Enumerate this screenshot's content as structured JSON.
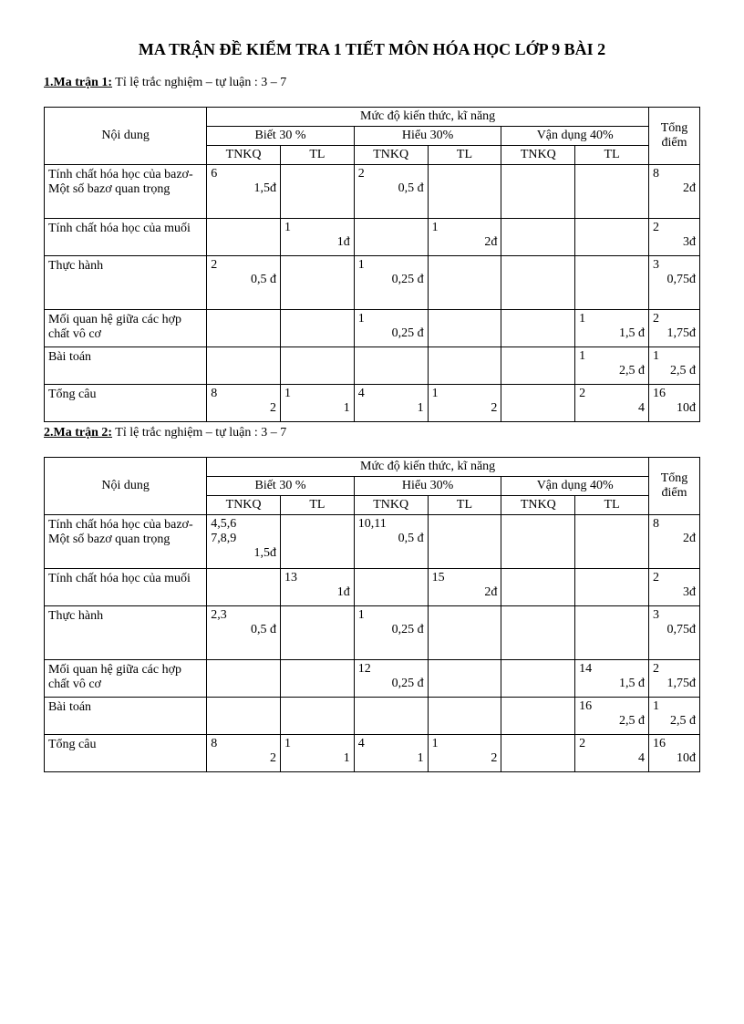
{
  "title": "MA TRẬN ĐỀ KIỂM TRA 1 TIẾT MÔN HÓA HỌC LỚP 9 BÀI 2",
  "sub1_label": "1.Ma trận 1:",
  "sub1_text": " Tỉ lệ trắc nghiệm  – tự luận : 3 – 7",
  "sub2_label": "2.Ma trận 2:",
  "sub2_text": " Tỉ lệ trắc nghiệm  – tự luận : 3 – 7",
  "headers": {
    "content": "Nội dung",
    "levels": "Mức độ kiến thức, kĩ năng",
    "total": "Tổng điểm",
    "biet": "Biết 30 %",
    "hieu": "Hiểu 30%",
    "van": "Vận dụng 40%",
    "tnkq": "TNKQ",
    "tl": "TL"
  },
  "rows_labels": {
    "r1": "Tính chất hóa học của bazơ- Một số bazơ quan trọng",
    "r2": "Tính chất hóa học của muối",
    "r3": "Thực hành",
    "r4": "Mối quan hệ giữa các hợp chất vô cơ",
    "r5": "Bài toán",
    "r6": "Tổng câu"
  },
  "t1": {
    "r1": {
      "c1t": "6",
      "c1b": "1,5đ",
      "c2t": "",
      "c2b": "",
      "c3t": "2",
      "c3b": "0,5 đ",
      "c4t": "",
      "c4b": "",
      "c5t": "",
      "c5b": "",
      "c6t": "",
      "c6b": "",
      "c7t": "8",
      "c7b": "2đ"
    },
    "r2": {
      "c1t": "",
      "c1b": "",
      "c2t": "1",
      "c2b": "1đ",
      "c3t": "",
      "c3b": "",
      "c4t": "1",
      "c4b": "2đ",
      "c5t": "",
      "c5b": "",
      "c6t": "",
      "c6b": "",
      "c7t": "2",
      "c7b": "3đ"
    },
    "r3": {
      "c1t": "2",
      "c1b": "0,5 đ",
      "c2t": "",
      "c2b": "",
      "c3t": "1",
      "c3b": "0,25 đ",
      "c4t": "",
      "c4b": "",
      "c5t": "",
      "c5b": "",
      "c6t": "",
      "c6b": "",
      "c7t": "3",
      "c7b": "0,75đ"
    },
    "r4": {
      "c1t": "",
      "c1b": "",
      "c2t": "",
      "c2b": "",
      "c3t": "1",
      "c3b": "0,25 đ",
      "c4t": "",
      "c4b": "",
      "c5t": "",
      "c5b": "",
      "c6t": "1",
      "c6b": "1,5 đ",
      "c7t": "2",
      "c7b": "1,75đ"
    },
    "r5": {
      "c1t": "",
      "c1b": "",
      "c2t": "",
      "c2b": "",
      "c3t": "",
      "c3b": "",
      "c4t": "",
      "c4b": "",
      "c5t": "",
      "c5b": "",
      "c6t": "1",
      "c6b": "2,5 đ",
      "c7t": "1",
      "c7b": "2,5 đ"
    },
    "r6": {
      "c1t": "8",
      "c1b": "2",
      "c2t": "1",
      "c2b": "1",
      "c3t": "4",
      "c3b": "1",
      "c4t": "1",
      "c4b": "2",
      "c5t": "",
      "c5b": "",
      "c6t": "2",
      "c6b": "4",
      "c7t": "16",
      "c7b": "10đ"
    }
  },
  "t2": {
    "r1": {
      "c1t": "4,5,6\n7,8,9",
      "c1b": "1,5đ",
      "c2t": "",
      "c2b": "",
      "c3t": "10,11",
      "c3b": "0,5 đ",
      "c4t": "",
      "c4b": "",
      "c5t": "",
      "c5b": "",
      "c6t": "",
      "c6b": "",
      "c7t": "8",
      "c7b": "2đ"
    },
    "r2": {
      "c1t": "",
      "c1b": "",
      "c2t": "13",
      "c2b": "1đ",
      "c3t": "",
      "c3b": "",
      "c4t": "15",
      "c4b": "2đ",
      "c5t": "",
      "c5b": "",
      "c6t": "",
      "c6b": "",
      "c7t": "2",
      "c7b": "3đ"
    },
    "r3": {
      "c1t": "2,3",
      "c1b": "0,5 đ",
      "c2t": "",
      "c2b": "",
      "c3t": "1",
      "c3b": "0,25 đ",
      "c4t": "",
      "c4b": "",
      "c5t": "",
      "c5b": "",
      "c6t": "",
      "c6b": "",
      "c7t": "3",
      "c7b": "0,75đ"
    },
    "r4": {
      "c1t": "",
      "c1b": "",
      "c2t": "",
      "c2b": "",
      "c3t": "12",
      "c3b": "0,25 đ",
      "c4t": "",
      "c4b": "",
      "c5t": "",
      "c5b": "",
      "c6t": "14",
      "c6b": "1,5 đ",
      "c7t": "2",
      "c7b": "1,75đ"
    },
    "r5": {
      "c1t": "",
      "c1b": "",
      "c2t": "",
      "c2b": "",
      "c3t": "",
      "c3b": "",
      "c4t": "",
      "c4b": "",
      "c5t": "",
      "c5b": "",
      "c6t": "16",
      "c6b": "2,5 đ",
      "c7t": "1",
      "c7b": "2,5 đ"
    },
    "r6": {
      "c1t": "8",
      "c1b": "2",
      "c2t": "1",
      "c2b": "1",
      "c3t": "4",
      "c3b": "1",
      "c4t": "1",
      "c4b": "2",
      "c5t": "",
      "c5b": "",
      "c6t": "2",
      "c6b": "4",
      "c7t": "16",
      "c7b": "10đ"
    }
  }
}
